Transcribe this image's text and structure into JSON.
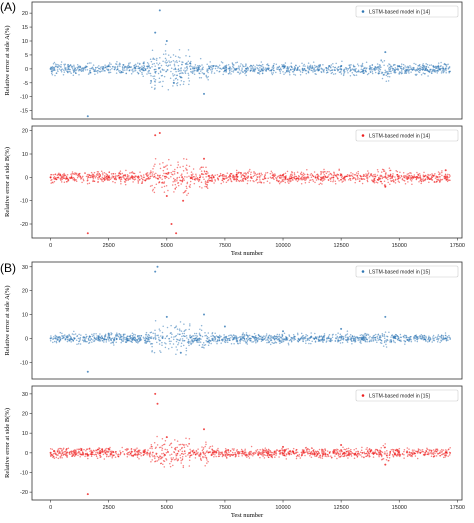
{
  "figure": {
    "panel_labels": [
      "(A)",
      "(B)"
    ]
  },
  "colors": {
    "blue": "#2f77b4",
    "red": "#ee1c1c",
    "frame": "#333333"
  },
  "chart_data": [
    {
      "type": "scatter",
      "panel": "(A)",
      "series": [
        {
          "name": "LSTM-based model in [14]",
          "color": "#2f77b4",
          "x": [
            0,
            1600,
            2500,
            4000,
            4500,
            4700,
            5000,
            5300,
            5600,
            6000,
            6600,
            7000,
            8000,
            10000,
            12500,
            14400,
            15000,
            17000
          ],
          "y": [
            0,
            -17,
            1,
            2,
            13,
            21,
            10,
            -5,
            -3,
            2,
            -9,
            1,
            0,
            1,
            1,
            6,
            1,
            0
          ]
        }
      ],
      "xlim": [
        -800,
        17700
      ],
      "ylim": [
        -18,
        24
      ],
      "yticks": [
        -15,
        -10,
        -5,
        0,
        5,
        10,
        15,
        20
      ],
      "ylabel": "Relative error at side A(%)",
      "xlabel": "",
      "legend": "top-right"
    },
    {
      "type": "scatter",
      "panel": "(A)",
      "series": [
        {
          "name": "LSTM-based model in [14]",
          "color": "#ee1c1c",
          "x": [
            0,
            1600,
            2500,
            4500,
            4700,
            5000,
            5200,
            5400,
            5700,
            6600,
            8000,
            10000,
            12500,
            14400,
            17000
          ],
          "y": [
            0,
            -24,
            0,
            18,
            19,
            -8,
            -20,
            -24,
            -10,
            8,
            1,
            1,
            1,
            -4,
            3
          ]
        }
      ],
      "xlim": [
        -800,
        17700
      ],
      "ylim": [
        -26,
        22
      ],
      "yticks": [
        -20,
        -10,
        0,
        10,
        20
      ],
      "xticks": [
        0,
        2500,
        5000,
        7500,
        10000,
        12500,
        15000,
        17500
      ],
      "ylabel": "Relative error at side B(%)",
      "xlabel": "Test number",
      "legend": "top-right"
    },
    {
      "type": "scatter",
      "panel": "(B)",
      "series": [
        {
          "name": "LSTM-based model in [15]",
          "color": "#2f77b4",
          "x": [
            0,
            1600,
            2500,
            4500,
            4600,
            5000,
            5600,
            6600,
            7500,
            10000,
            12500,
            14400,
            17000
          ],
          "y": [
            0,
            -14,
            2,
            28,
            30,
            9,
            -6,
            10,
            5,
            3,
            4,
            9,
            0
          ]
        }
      ],
      "xlim": [
        -800,
        17700
      ],
      "ylim": [
        -17,
        32
      ],
      "yticks": [
        -10,
        0,
        10,
        20,
        30
      ],
      "ylabel": "Relative error at side A(%)",
      "xlabel": "",
      "legend": "top-right"
    },
    {
      "type": "scatter",
      "panel": "(B)",
      "series": [
        {
          "name": "LSTM-based model in [15]",
          "color": "#ee1c1c",
          "x": [
            0,
            1600,
            2500,
            4500,
            4600,
            5000,
            6600,
            10000,
            12500,
            14400,
            17000
          ],
          "y": [
            0,
            -21,
            2,
            30,
            25,
            8,
            12,
            3,
            4,
            -6,
            0
          ]
        }
      ],
      "xlim": [
        -800,
        17700
      ],
      "ylim": [
        -24,
        34
      ],
      "yticks": [
        -20,
        -10,
        0,
        10,
        20,
        30
      ],
      "xticks": [
        0,
        2500,
        5000,
        7500,
        10000,
        12500,
        15000,
        17500
      ],
      "ylabel": "Relative error at side B(%)",
      "xlabel": "Test number",
      "legend": "top-right"
    }
  ]
}
